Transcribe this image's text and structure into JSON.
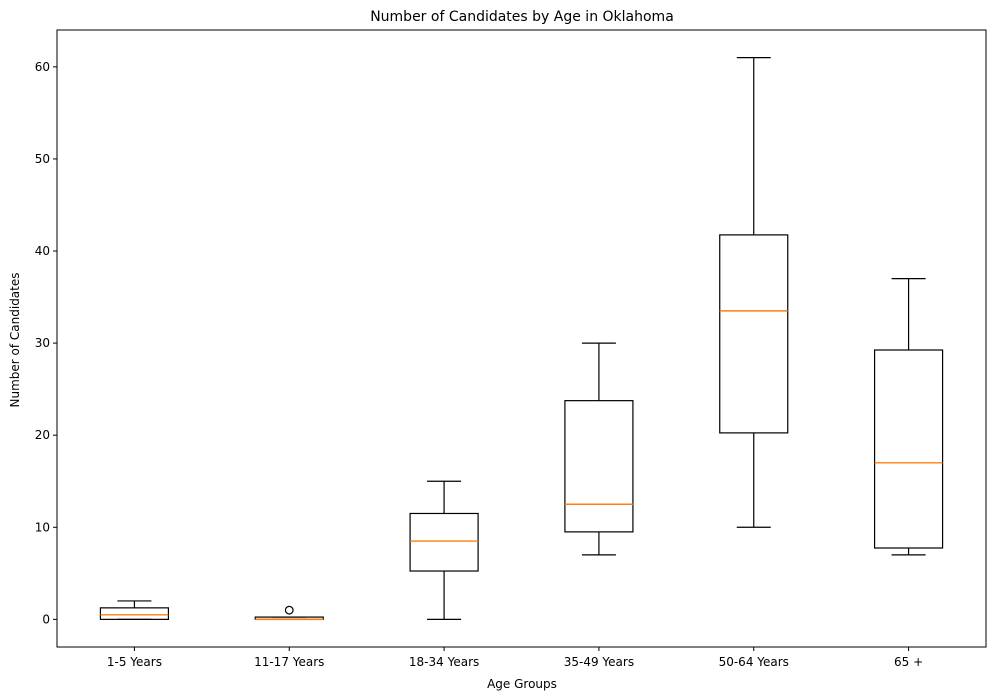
{
  "chart_data": {
    "type": "box",
    "title": "Number of Candidates by Age in Oklahoma",
    "xlabel": "Age Groups",
    "ylabel": "Number of Candidates",
    "ylim": [
      -3,
      64
    ],
    "yticks": [
      0,
      10,
      20,
      30,
      40,
      50,
      60
    ],
    "grid": false,
    "colors": {
      "box": "#000000",
      "median": "#ff7f0e",
      "background": "#ffffff"
    },
    "categories": [
      "1-5 Years",
      "11-17 Years",
      "18-34 Years",
      "35-49 Years",
      "50-64 Years",
      "65 +"
    ],
    "boxes": [
      {
        "category": "1-5 Years",
        "whisker_low": 0,
        "q1": 0,
        "median": 0.5,
        "q3": 1.25,
        "whisker_high": 2,
        "outliers": []
      },
      {
        "category": "11-17 Years",
        "whisker_low": 0,
        "q1": 0,
        "median": 0,
        "q3": 0.25,
        "whisker_high": 0.25,
        "outliers": [
          1
        ]
      },
      {
        "category": "18-34 Years",
        "whisker_low": 0,
        "q1": 5.25,
        "median": 8.5,
        "q3": 11.5,
        "whisker_high": 15,
        "outliers": []
      },
      {
        "category": "35-49 Years",
        "whisker_low": 7,
        "q1": 9.5,
        "median": 12.5,
        "q3": 23.75,
        "whisker_high": 30,
        "outliers": []
      },
      {
        "category": "50-64 Years",
        "whisker_low": 10,
        "q1": 20.25,
        "median": 33.5,
        "q3": 41.75,
        "whisker_high": 61,
        "outliers": []
      },
      {
        "category": "65 +",
        "whisker_low": 7,
        "q1": 7.75,
        "median": 17,
        "q3": 29.25,
        "whisker_high": 37,
        "outliers": []
      }
    ]
  }
}
